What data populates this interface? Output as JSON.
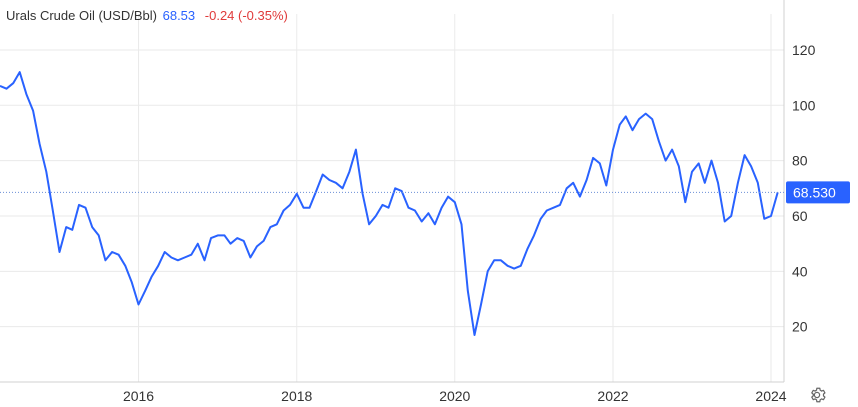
{
  "legend": {
    "name": "Urals Crude Oil (USD/Bbl)",
    "price": "68.53",
    "change": "-0.24 (-0.35%)"
  },
  "colors": {
    "line": "#2962ff",
    "last_label_bg": "#2962ff",
    "change": "#e03a3a",
    "grid": "#eaeaea"
  },
  "icons": {
    "settings": "gear-icon"
  },
  "chart_data": {
    "type": "line",
    "title": "",
    "xlabel": "",
    "ylabel": "",
    "x_ticks": [
      "2016",
      "2018",
      "2020",
      "2022",
      "2024"
    ],
    "y_ticks": [
      20,
      40,
      60,
      80,
      100,
      120
    ],
    "xlim": [
      "2014-04-01",
      "2024-03-01"
    ],
    "ylim": [
      0,
      133
    ],
    "grid": true,
    "last_value_label": "68.530",
    "series": [
      {
        "name": "Urals Crude Oil",
        "x": [
          "2014-04-01",
          "2014-05-01",
          "2014-06-01",
          "2014-07-01",
          "2014-08-01",
          "2014-09-01",
          "2014-10-01",
          "2014-11-01",
          "2014-12-01",
          "2015-01-01",
          "2015-02-01",
          "2015-03-01",
          "2015-04-01",
          "2015-05-01",
          "2015-06-01",
          "2015-07-01",
          "2015-08-01",
          "2015-09-01",
          "2015-10-01",
          "2015-11-01",
          "2015-12-01",
          "2016-01-01",
          "2016-02-01",
          "2016-03-01",
          "2016-04-01",
          "2016-05-01",
          "2016-06-01",
          "2016-07-01",
          "2016-08-01",
          "2016-09-01",
          "2016-10-01",
          "2016-11-01",
          "2016-12-01",
          "2017-01-01",
          "2017-02-01",
          "2017-03-01",
          "2017-04-01",
          "2017-05-01",
          "2017-06-01",
          "2017-07-01",
          "2017-08-01",
          "2017-09-01",
          "2017-10-01",
          "2017-11-01",
          "2017-12-01",
          "2018-01-01",
          "2018-02-01",
          "2018-03-01",
          "2018-04-01",
          "2018-05-01",
          "2018-06-01",
          "2018-07-01",
          "2018-08-01",
          "2018-09-01",
          "2018-10-01",
          "2018-11-01",
          "2018-12-01",
          "2019-01-01",
          "2019-02-01",
          "2019-03-01",
          "2019-04-01",
          "2019-05-01",
          "2019-06-01",
          "2019-07-01",
          "2019-08-01",
          "2019-09-01",
          "2019-10-01",
          "2019-11-01",
          "2019-12-01",
          "2020-01-01",
          "2020-02-01",
          "2020-03-01",
          "2020-04-01",
          "2020-05-01",
          "2020-06-01",
          "2020-07-01",
          "2020-08-01",
          "2020-09-01",
          "2020-10-01",
          "2020-11-01",
          "2020-12-01",
          "2021-01-01",
          "2021-02-01",
          "2021-03-01",
          "2021-04-01",
          "2021-05-01",
          "2021-06-01",
          "2021-07-01",
          "2021-08-01",
          "2021-09-01",
          "2021-10-01",
          "2021-11-01",
          "2021-12-01",
          "2022-01-01",
          "2022-02-01",
          "2022-03-01",
          "2022-04-01",
          "2022-05-01",
          "2022-06-01",
          "2022-07-01",
          "2022-08-01",
          "2022-09-01",
          "2022-10-01",
          "2022-11-01",
          "2022-12-01",
          "2023-01-01",
          "2023-02-01",
          "2023-03-01",
          "2023-04-01",
          "2023-05-01",
          "2023-06-01",
          "2023-07-01",
          "2023-08-01",
          "2023-09-01",
          "2023-10-01",
          "2023-11-01",
          "2023-12-01",
          "2024-01-01",
          "2024-02-01"
        ],
        "values": [
          107,
          106,
          108,
          112,
          104,
          98,
          86,
          76,
          62,
          47,
          56,
          55,
          64,
          63,
          56,
          53,
          44,
          47,
          46,
          42,
          36,
          28,
          33,
          38,
          42,
          47,
          45,
          44,
          45,
          46,
          50,
          44,
          52,
          53,
          53,
          50,
          52,
          51,
          45,
          49,
          51,
          56,
          57,
          62,
          64,
          68,
          63,
          63,
          69,
          75,
          73,
          72,
          70,
          76,
          84,
          68,
          57,
          60,
          64,
          63,
          70,
          69,
          63,
          62,
          58,
          61,
          57,
          63,
          67,
          65,
          57,
          33,
          17,
          28,
          40,
          44,
          44,
          42,
          41,
          42,
          48,
          53,
          59,
          62,
          63,
          64,
          70,
          72,
          67,
          73,
          81,
          79,
          71,
          84,
          93,
          96,
          91,
          95,
          97,
          95,
          87,
          80,
          84,
          78,
          65,
          76,
          79,
          72,
          80,
          72,
          58,
          60,
          72,
          82,
          78,
          72,
          59,
          60,
          68.53
        ]
      }
    ]
  }
}
